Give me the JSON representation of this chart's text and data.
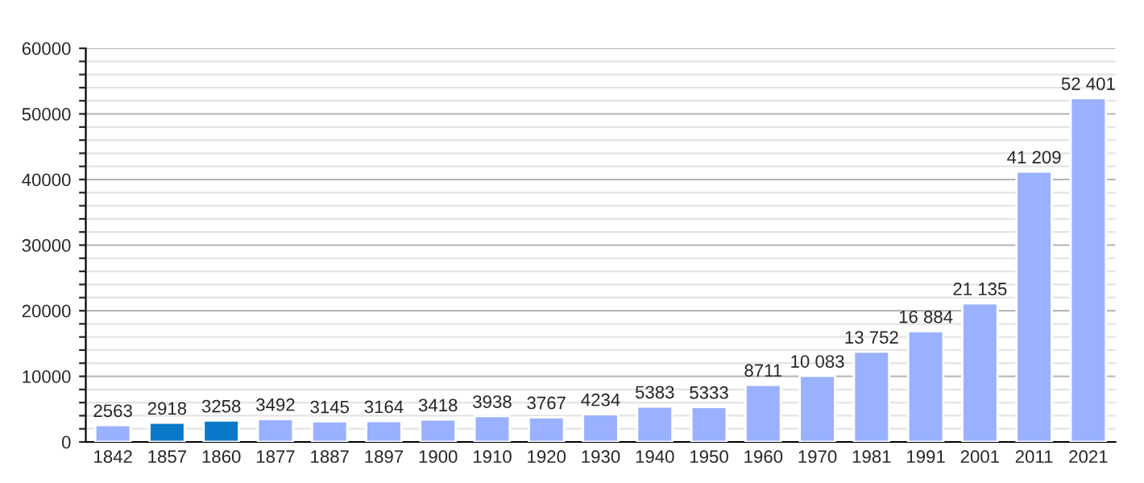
{
  "chart_data": {
    "type": "bar",
    "categories": [
      "1842",
      "1857",
      "1860",
      "1877",
      "1887",
      "1897",
      "1900",
      "1910",
      "1920",
      "1930",
      "1940",
      "1950",
      "1960",
      "1970",
      "1981",
      "1991",
      "2001",
      "2011",
      "2021"
    ],
    "values": [
      2563,
      2918,
      3258,
      3492,
      3145,
      3164,
      3418,
      3938,
      3767,
      4234,
      5383,
      5333,
      8711,
      10083,
      13752,
      16884,
      21135,
      41209,
      52401
    ],
    "colors": [
      "#99b1ff",
      "#0a78c8",
      "#0a78c8",
      "#99b1ff",
      "#99b1ff",
      "#99b1ff",
      "#99b1ff",
      "#99b1ff",
      "#99b1ff",
      "#99b1ff",
      "#99b1ff",
      "#99b1ff",
      "#99b1ff",
      "#99b1ff",
      "#99b1ff",
      "#99b1ff",
      "#99b1ff",
      "#99b1ff",
      "#99b1ff"
    ],
    "value_labels": [
      "2563",
      "2918",
      "3258",
      "3492",
      "3145",
      "3164",
      "3418",
      "3938",
      "3767",
      "4234",
      "5383",
      "5333",
      "8711",
      "10 083",
      "13 752",
      "16 884",
      "21 135",
      "41 209",
      "52 401"
    ],
    "ylim": [
      0,
      60000
    ],
    "yticks": [
      0,
      {
        "value": 2000,
        "label": null
      },
      {
        "value": 4000,
        "label": null
      },
      {
        "value": 6000,
        "label": null
      },
      {
        "value": 8000,
        "label": null
      },
      10000,
      {
        "value": 12000,
        "label": null
      },
      {
        "value": 14000,
        "label": null
      },
      {
        "value": 16000,
        "label": null
      },
      {
        "value": 18000,
        "label": null
      },
      20000,
      {
        "value": 22000,
        "label": null
      },
      {
        "value": 24000,
        "label": null
      },
      {
        "value": 26000,
        "label": null
      },
      {
        "value": 28000,
        "label": null
      },
      30000,
      {
        "value": 32000,
        "label": null
      },
      {
        "value": 34000,
        "label": null
      },
      {
        "value": 36000,
        "label": null
      },
      {
        "value": 38000,
        "label": null
      },
      40000,
      {
        "value": 42000,
        "label": null
      },
      {
        "value": 44000,
        "label": null
      },
      {
        "value": 46000,
        "label": null
      },
      {
        "value": 48000,
        "label": null
      },
      50000,
      {
        "value": 52000,
        "label": null
      },
      {
        "value": 54000,
        "label": null
      },
      {
        "value": 56000,
        "label": null
      },
      {
        "value": 58000,
        "label": null
      },
      60000
    ],
    "grid": "y"
  }
}
